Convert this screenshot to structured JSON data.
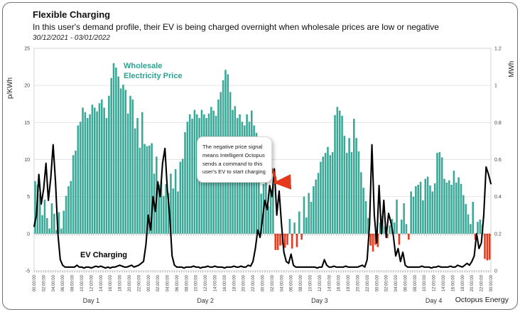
{
  "header": {
    "title": "Flexible Charging",
    "subtitle": "In this user's demand profile, their EV is being charged overnight when wholesale prices are low or negative",
    "date_range": "30/12/2021 - 03/01/2022"
  },
  "footer_brand": "Octopus Energy",
  "annotations": {
    "wholesale_label": "Wholesale Electricity Price",
    "ev_label": "EV Charging",
    "callout_text": "The negative price signal means Intelligent Octopus sends a command to this user's EV to start charging"
  },
  "colors": {
    "bar_positive": "#39a897",
    "bar_negative": "#e6391b",
    "line": "#000000",
    "grid": "#e4e4e4",
    "plot_border": "#d6d6d6",
    "axis_text": "#444444",
    "arrow": "#e6391b",
    "teal_label": "#2aa392"
  },
  "chart_data": {
    "type": "combo",
    "interval_minutes": 30,
    "left_axis": {
      "label": "p/KWh",
      "min": -5,
      "max": 25,
      "ticks": [
        25,
        20,
        15,
        10,
        5,
        0,
        -5
      ]
    },
    "right_axis": {
      "label": "MWh",
      "min": 0,
      "max": 1.2,
      "ticks": [
        1.2,
        1,
        0.8,
        0.6,
        0.4,
        0.2,
        0
      ]
    },
    "grid": true,
    "day_labels": [
      "Day 1",
      "Day 2",
      "Day 3",
      "Day 4"
    ],
    "x_tick_labels": [
      "00:00:00",
      "02:00:00",
      "04:00:00",
      "06:00:00",
      "08:00:00",
      "10:00:00",
      "12:00:00",
      "14:00:00",
      "16:00:00",
      "18:00:00",
      "20:00:00",
      "22:00:00",
      "00:00:00",
      "02:00:00",
      "04:00:00",
      "06:00:00",
      "08:00:00",
      "10:00:00",
      "12:00:00",
      "14:00:00",
      "16:00:00",
      "18:00:00",
      "20:00:00",
      "22:00:00",
      "00:00:00",
      "02:00:00",
      "04:00:00",
      "06:00:00",
      "08:00:00",
      "10:00:00",
      "12:00:00",
      "14:00:00",
      "16:00:00",
      "18:00:00",
      "20:00:00",
      "22:00:00",
      "00:00:00",
      "02:00:00",
      "04:00:00",
      "06:00:00",
      "08:00:00",
      "10:00:00",
      "12:00:00",
      "14:00:00",
      "16:00:00",
      "18:00:00",
      "20:00:00",
      "22:00:00",
      "00:00:00"
    ],
    "series": [
      {
        "name": "Wholesale Electricity Price",
        "type": "bar",
        "axis": "left",
        "unit": "p/KWh",
        "values": [
          7.1,
          6.6,
          5.4,
          2.5,
          4.6,
          2.1,
          0.7,
          4.1,
          2.7,
          0.5,
          2.9,
          0.7,
          3.1,
          5.1,
          6.4,
          7.1,
          10.6,
          11.2,
          14.6,
          15.1,
          17.0,
          16.4,
          15.6,
          16.1,
          17.4,
          17.0,
          16.5,
          17.6,
          18.1,
          17.0,
          15.6,
          18.6,
          21.0,
          23.0,
          22.4,
          21.2,
          19.6,
          20.1,
          19.4,
          16.2,
          18.6,
          18.1,
          14.2,
          15.6,
          11.6,
          16.4,
          12.1,
          11.8,
          11.9,
          12.2,
          8.1,
          10.4,
          6.6,
          7.1,
          5.1,
          6.7,
          5.5,
          8.1,
          6.1,
          8.7,
          5.7,
          9.7,
          10.1,
          13.7,
          15.1,
          16.1,
          15.5,
          16.7,
          16.1,
          15.6,
          16.7,
          16.1,
          15.6,
          16.2,
          17.1,
          16.6,
          15.9,
          18.1,
          19.1,
          20.7,
          22.1,
          21.5,
          19.1,
          16.7,
          17.2,
          15.6,
          16.1,
          15.1,
          14.6,
          16.1,
          15.1,
          16.6,
          14.6,
          13.6,
          8.1,
          5.4,
          6.7,
          6.9,
          3.7,
          5.9,
          6.7,
          -2.2,
          -2.2,
          -1.6,
          -1.5,
          -1.9,
          -1.5,
          2.0,
          -2.0,
          1.5,
          -1.8,
          3.0,
          -0.8,
          5.0,
          2.2,
          5.5,
          4.3,
          6.4,
          7.3,
          8.2,
          9.7,
          10.4,
          10.9,
          11.7,
          10.6,
          11.0,
          16.0,
          17.1,
          16.6,
          15.9,
          13.2,
          10.9,
          12.9,
          11.0,
          15.5,
          12.9,
          11.1,
          8.3,
          6.2,
          4.4,
          2.1,
          -1.6,
          -2.4,
          -1.5,
          -1.8,
          1.5,
          2.4,
          1.0,
          -0.6,
          1.1,
          2.0,
          1.5,
          4.6,
          -1.5,
          1.9,
          4.1,
          1.3,
          -0.8,
          5.7,
          5.0,
          6.4,
          6.6,
          7.0,
          4.5,
          7.4,
          7.7,
          6.5,
          5.7,
          6.8,
          10.9,
          11.0,
          10.3,
          7.4,
          6.9,
          7.2,
          6.6,
          8.5,
          6.9,
          7.6,
          6.7,
          5.2,
          4.0,
          2.6,
          1.3,
          4.3,
          -0.8,
          1.6,
          1.9,
          1.2,
          -3.4,
          -3.6,
          -3.5
        ]
      },
      {
        "name": "EV Charging",
        "type": "line",
        "axis": "right",
        "unit": "MWh",
        "values": [
          0.24,
          0.3,
          0.52,
          0.36,
          0.44,
          0.58,
          0.38,
          0.5,
          0.68,
          0.48,
          0.2,
          0.06,
          0.03,
          0.02,
          0.02,
          0.02,
          0.02,
          0.02,
          0.03,
          0.02,
          0.02,
          0.015,
          0.02,
          0.02,
          0.015,
          0.02,
          0.025,
          0.02,
          0.025,
          0.02,
          0.015,
          0.02,
          0.015,
          0.02,
          0.02,
          0.025,
          0.03,
          0.025,
          0.02,
          0.02,
          0.025,
          0.03,
          0.02,
          0.025,
          0.03,
          0.04,
          0.05,
          0.14,
          0.3,
          0.22,
          0.4,
          0.32,
          0.48,
          0.4,
          0.58,
          0.66,
          0.44,
          0.3,
          0.08,
          0.03,
          0.02,
          0.02,
          0.02,
          0.015,
          0.02,
          0.02,
          0.02,
          0.025,
          0.02,
          0.02,
          0.015,
          0.02,
          0.02,
          0.025,
          0.02,
          0.02,
          0.025,
          0.02,
          0.02,
          0.02,
          0.015,
          0.02,
          0.02,
          0.02,
          0.025,
          0.02,
          0.02,
          0.025,
          0.02,
          0.02,
          0.03,
          0.025,
          0.05,
          0.12,
          0.22,
          0.18,
          0.28,
          0.38,
          0.33,
          0.46,
          0.4,
          0.55,
          0.3,
          0.43,
          0.25,
          0.1,
          0.05,
          0.04,
          0.09,
          0.03,
          0.02,
          0.02,
          0.02,
          0.02,
          0.02,
          0.02,
          0.02,
          0.02,
          0.02,
          0.015,
          0.02,
          0.02,
          0.06,
          0.03,
          0.02,
          0.02,
          0.025,
          0.02,
          0.02,
          0.02,
          0.02,
          0.025,
          0.02,
          0.02,
          0.02,
          0.02,
          0.02,
          0.025,
          0.03,
          0.02,
          0.06,
          0.25,
          0.68,
          0.3,
          0.15,
          0.46,
          0.2,
          0.38,
          0.18,
          0.31,
          0.26,
          0.19,
          0.08,
          0.12,
          0.05,
          0.1,
          0.03,
          0.02,
          0.02,
          0.02,
          0.02,
          0.02,
          0.02,
          0.025,
          0.02,
          0.02,
          0.02,
          0.015,
          0.02,
          0.02,
          0.025,
          0.02,
          0.02,
          0.02,
          0.02,
          0.025,
          0.02,
          0.02,
          0.03,
          0.025,
          0.02,
          0.03,
          0.04,
          0.03,
          0.05,
          0.08,
          0.2,
          0.12,
          0.15,
          0.3,
          0.56,
          0.52,
          0.47
        ]
      }
    ]
  }
}
